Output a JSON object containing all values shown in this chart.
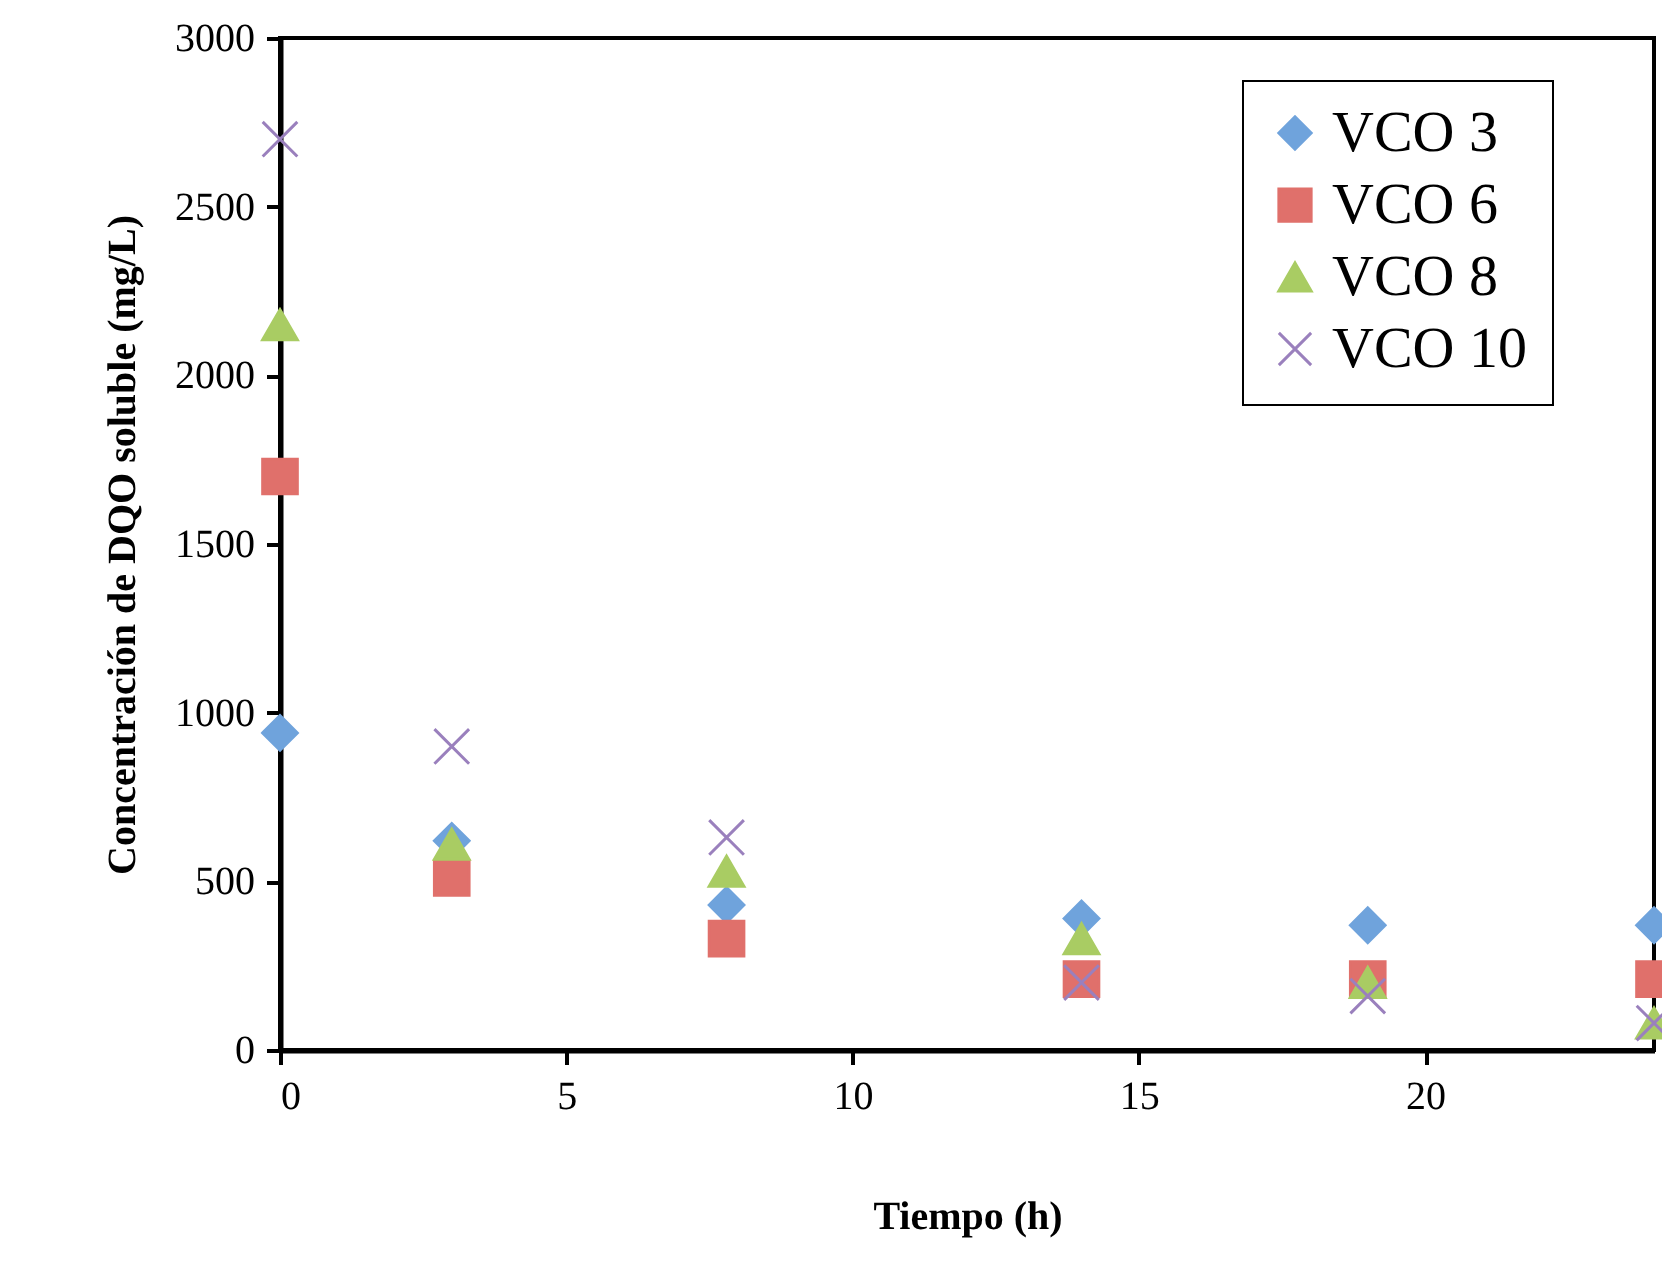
{
  "chart_data": {
    "type": "scatter",
    "xlabel": "Tiempo (h)",
    "ylabel": "Concentración de DQO soluble (mg/L)",
    "x": [
      0,
      3,
      7.8,
      14,
      19,
      24
    ],
    "series": [
      {
        "name": "VCO 3",
        "color": "#6fa3dc",
        "marker": "diamond",
        "values": [
          940,
          620,
          430,
          390,
          370,
          370
        ]
      },
      {
        "name": "VCO 6",
        "color": "#e0706b",
        "marker": "square",
        "values": [
          1700,
          510,
          330,
          210,
          210,
          210
        ]
      },
      {
        "name": "VCO 8",
        "color": "#a9cc63",
        "marker": "triangle",
        "values": [
          2150,
          610,
          530,
          330,
          200,
          80
        ]
      },
      {
        "name": "VCO 10",
        "color": "#9a80bd",
        "marker": "cross",
        "values": [
          2700,
          900,
          630,
          200,
          160,
          80
        ]
      }
    ],
    "xlim": [
      0,
      24
    ],
    "xticks": [
      0,
      5,
      10,
      15,
      20
    ],
    "ylim": [
      0,
      3000
    ],
    "yticks": [
      0,
      500,
      1000,
      1500,
      2000,
      2500,
      3000
    ],
    "legend": "top right",
    "grid": false
  }
}
